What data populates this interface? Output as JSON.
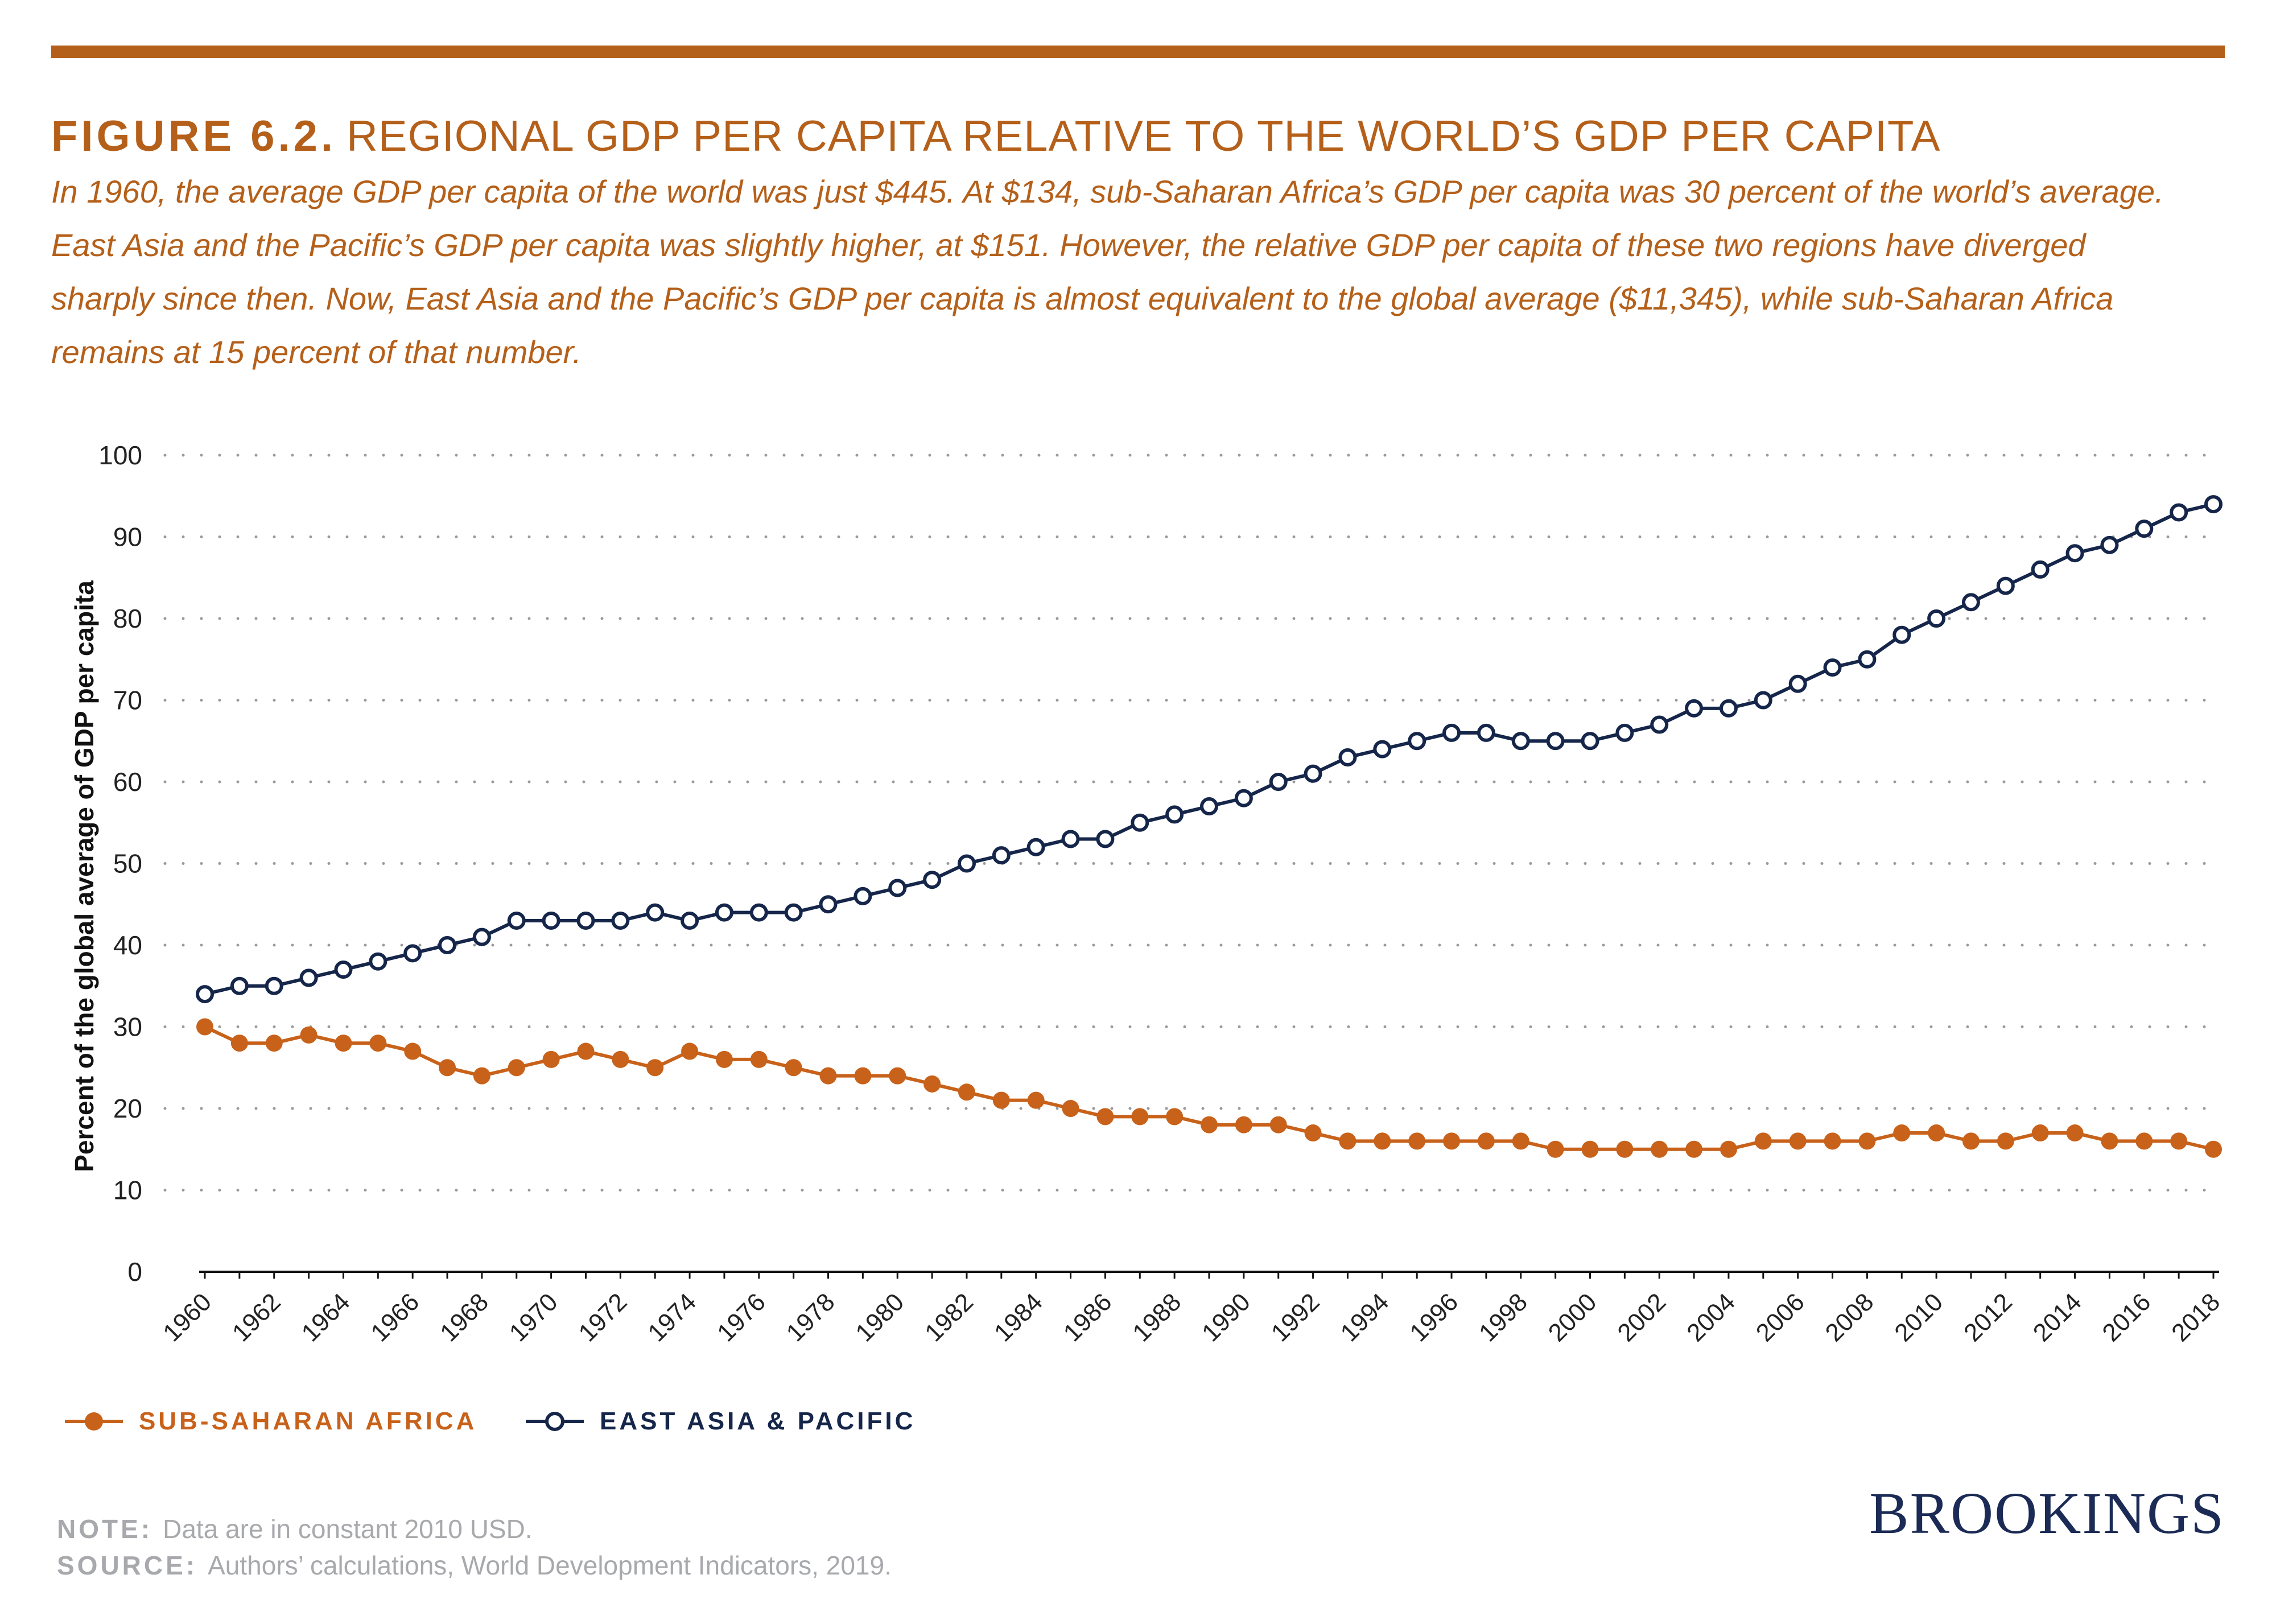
{
  "header": {
    "figure_label": "FIGURE 6.2.",
    "title": "REGIONAL GDP PER CAPITA RELATIVE TO THE WORLD’S GDP PER CAPITA",
    "subtitle": "In 1960, the average GDP per capita of the world was just $445. At $134, sub-Saharan Africa’s GDP per capita was 30 percent of the world’s average. East Asia and the Pacific’s GDP per capita was slightly higher, at $151. However, the relative GDP per capita of these two regions have diverged sharply since then. Now, East Asia and the Pacific’s GDP per capita is almost equivalent to the global average ($11,345), while sub-Saharan Africa remains at 15 percent of that number."
  },
  "chart_data": {
    "type": "line",
    "ylabel": "Percent of the global average of GDP per capita",
    "ylim": [
      0,
      100
    ],
    "yticks": [
      0,
      10,
      20,
      30,
      40,
      50,
      60,
      70,
      80,
      90,
      100
    ],
    "x": [
      1960,
      1961,
      1962,
      1963,
      1964,
      1965,
      1966,
      1967,
      1968,
      1969,
      1970,
      1971,
      1972,
      1973,
      1974,
      1975,
      1976,
      1977,
      1978,
      1979,
      1980,
      1981,
      1982,
      1983,
      1984,
      1985,
      1986,
      1987,
      1988,
      1989,
      1990,
      1991,
      1992,
      1993,
      1994,
      1995,
      1996,
      1997,
      1998,
      1999,
      2000,
      2001,
      2002,
      2003,
      2004,
      2005,
      2006,
      2007,
      2008,
      2009,
      2010,
      2011,
      2012,
      2013,
      2014,
      2015,
      2016,
      2017,
      2018
    ],
    "xticks": [
      "1960",
      "1962",
      "1964",
      "1966",
      "1968",
      "1970",
      "1972",
      "1974",
      "1976",
      "1978",
      "1980",
      "1982",
      "1984",
      "1986",
      "1988",
      "1990",
      "1992",
      "1994",
      "1996",
      "1998",
      "2000",
      "2002",
      "2004",
      "2006",
      "2008",
      "2010",
      "2012",
      "2014",
      "2016",
      "2018"
    ],
    "grid": "horizontal-dotted",
    "legend_position": "bottom-left",
    "series": [
      {
        "name": "SUB-SAHARAN AFRICA",
        "color": "#c8621a",
        "marker": "filled-circle",
        "values": [
          30,
          28,
          28,
          29,
          28,
          28,
          27,
          25,
          24,
          25,
          26,
          27,
          26,
          25,
          27,
          26,
          26,
          25,
          24,
          24,
          24,
          23,
          22,
          21,
          21,
          20,
          19,
          19,
          19,
          18,
          18,
          18,
          17,
          16,
          16,
          16,
          16,
          16,
          16,
          15,
          15,
          15,
          15,
          15,
          15,
          16,
          16,
          16,
          16,
          17,
          17,
          16,
          16,
          17,
          17,
          16,
          16,
          16,
          15
        ]
      },
      {
        "name": "EAST ASIA & PACIFIC",
        "color": "#15264a",
        "marker": "open-circle",
        "values": [
          34,
          35,
          35,
          36,
          37,
          38,
          39,
          40,
          41,
          43,
          43,
          43,
          43,
          44,
          43,
          44,
          44,
          44,
          45,
          46,
          47,
          48,
          50,
          51,
          52,
          53,
          53,
          55,
          56,
          57,
          58,
          60,
          61,
          63,
          64,
          65,
          66,
          66,
          65,
          65,
          65,
          66,
          67,
          69,
          69,
          70,
          72,
          74,
          75,
          78,
          80,
          82,
          84,
          86,
          88,
          89,
          91,
          93,
          94
        ]
      }
    ]
  },
  "footer": {
    "note_label": "NOTE:",
    "note_text": "Data are in constant 2010 USD.",
    "source_label": "SOURCE:",
    "source_text": "Authors’ calculations, World Development Indicators, 2019.",
    "logo": "BROOKINGS"
  }
}
